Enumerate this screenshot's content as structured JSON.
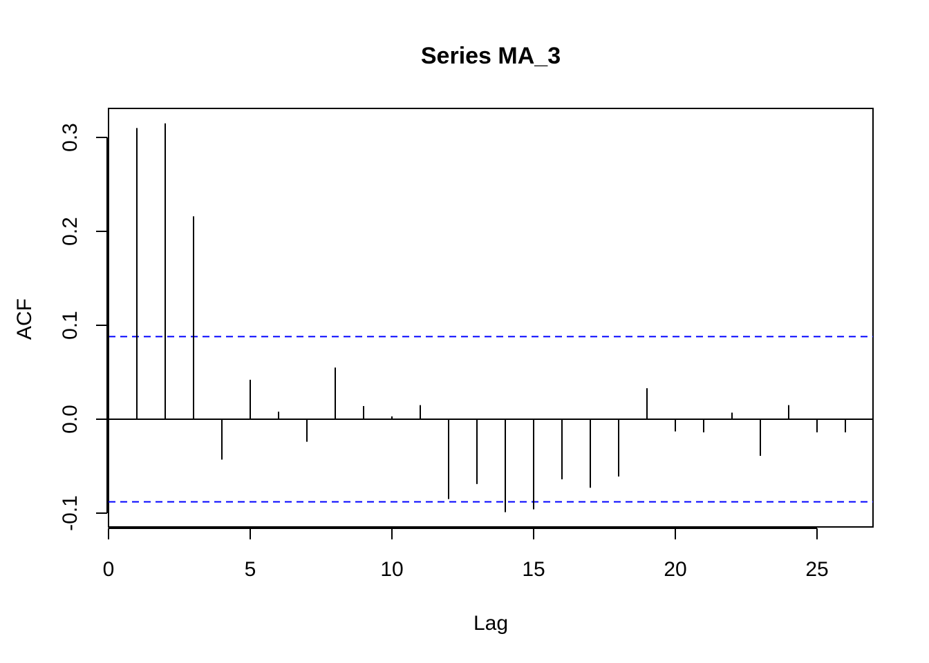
{
  "chart_data": {
    "type": "bar",
    "title": "Series MA_3",
    "xlabel": "Lag",
    "ylabel": "ACF",
    "xlim": [
      0,
      27
    ],
    "ylim": [
      -0.115,
      0.33
    ],
    "x_ticks": [
      0,
      5,
      10,
      15,
      20,
      25
    ],
    "x_tick_labels": [
      "0",
      "5",
      "10",
      "15",
      "20",
      "25"
    ],
    "y_ticks": [
      -0.1,
      0.0,
      0.1,
      0.2,
      0.3
    ],
    "y_tick_labels": [
      "-0.1",
      "0.0",
      "0.1",
      "0.2",
      "0.3"
    ],
    "lags": [
      1,
      2,
      3,
      4,
      5,
      6,
      7,
      8,
      9,
      10,
      11,
      12,
      13,
      14,
      15,
      16,
      17,
      18,
      19,
      20,
      21,
      22,
      23,
      24,
      25,
      26
    ],
    "values": [
      0.31,
      0.315,
      0.216,
      -0.043,
      0.042,
      0.008,
      -0.024,
      0.055,
      0.014,
      0.003,
      0.015,
      -0.085,
      -0.069,
      -0.099,
      -0.096,
      -0.064,
      -0.073,
      -0.061,
      0.033,
      -0.013,
      -0.014,
      0.007,
      -0.039,
      0.015,
      -0.014,
      -0.014
    ],
    "confidence_band": 0.088,
    "grid": false,
    "legend": false,
    "colors": {
      "bars": "#000000",
      "confidence": "#0000ff",
      "zero_line": "#000000"
    }
  }
}
